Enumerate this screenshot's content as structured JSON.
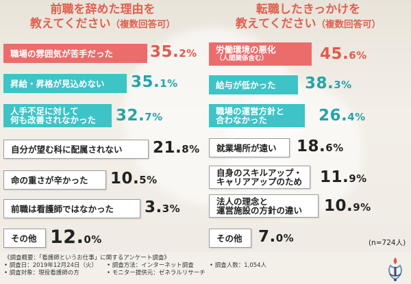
{
  "left_panel": {
    "title_line1": "前職を辞めた理由を",
    "title_line2": "教えてください",
    "title_paren": "（複数回答可）",
    "items": [
      {
        "label": "職場の雰囲気が苦手だった",
        "value": "35.",
        "decimal": "2%"
      },
      {
        "label": "昇給・昇格が見込めない",
        "value": "35.",
        "decimal": "1%"
      },
      {
        "label_line1": "人手不足に対して",
        "label_line2": "何も改善されなかった",
        "value": "32.",
        "decimal": "7%"
      },
      {
        "label": "自分が望む科に配属されない",
        "value": "21.",
        "decimal": "8%"
      },
      {
        "label": "命の重さが辛かった",
        "value": "10.",
        "decimal": "5%"
      },
      {
        "label": "前職は看護師ではなかった",
        "value": "3.",
        "decimal": "3%"
      },
      {
        "label": "その他",
        "value": "12.",
        "decimal": "0%"
      }
    ]
  },
  "right_panel": {
    "title_line1": "転職したきっかけを",
    "title_line2": "教えてください",
    "title_paren": "（複数回答可）",
    "items": [
      {
        "label": "労働環境の悪化",
        "sub": "（人間関係含む）",
        "value": "45.",
        "decimal": "6%"
      },
      {
        "label": "給与が低かった",
        "value": "38.",
        "decimal": "3%"
      },
      {
        "label_line1": "職場の運営方針と",
        "label_line2": "合わなかった",
        "value": "26.",
        "decimal": "4%"
      },
      {
        "label": "就業場所が遠い",
        "value": "18.",
        "decimal": "6%"
      },
      {
        "label_line1": "自身のスキルアップ・",
        "label_line2": "キャリアアップのため",
        "value": "11.",
        "decimal": "9%"
      },
      {
        "label_line1": "法人の理念と",
        "label_line2": "運営施設の方針の違い",
        "value": "10.",
        "decimal": "9%"
      },
      {
        "label": "その他",
        "value": "7.",
        "decimal": "0%"
      }
    ]
  },
  "n_label": "(n=724人)",
  "footer": {
    "heading": "《調査概要：「看護師というお仕事」に関するアンケート調査》",
    "date": "• 調査日：2019年12月24日（火）",
    "method": "• 調査方法：インターネット調査",
    "count": "• 調査人数：1,054人",
    "target": "• 調査対象：現役看護師の方",
    "monitor": "• モニター提供元：ゼネラルリサーチ"
  },
  "colors": {
    "red": "#ec6c6c",
    "teal": "#3ec3c6",
    "title": "#e0604f"
  },
  "logo_icon": "nurse-logo-icon"
}
